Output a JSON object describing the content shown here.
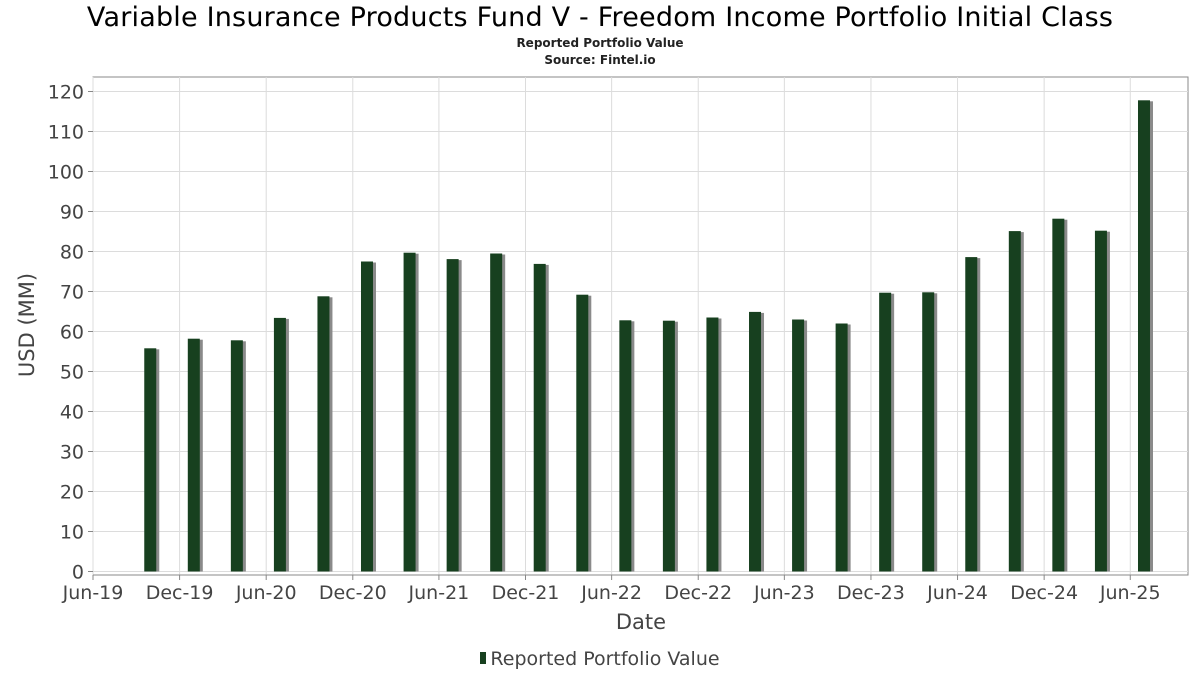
{
  "chart_data": {
    "type": "bar",
    "title": "Variable Insurance Products Fund V - Freedom Income Portfolio Initial Class",
    "subtitle_lines": [
      "Reported Portfolio Value",
      "Source: Fintel.io"
    ],
    "xlabel": "Date",
    "ylabel": "USD (MM)",
    "ylim": [
      0,
      123
    ],
    "yticks": [
      0,
      10,
      20,
      30,
      40,
      50,
      60,
      70,
      80,
      90,
      100,
      110,
      120
    ],
    "x_tick_labels": [
      "Jun-19",
      "Dec-19",
      "Jun-20",
      "Dec-20",
      "Jun-21",
      "Dec-21",
      "Jun-22",
      "Dec-22",
      "Jun-23",
      "Dec-23",
      "Jun-24",
      "Dec-24",
      "Jun-25"
    ],
    "x_range": [
      "2019-06-01",
      "2025-10-01"
    ],
    "grid": true,
    "legend_position": "bottom-center",
    "bar_color": "#17401f",
    "shadow_color": "#8a8a8a",
    "series": [
      {
        "name": "Reported Portfolio Value",
        "x": [
          "2019-09-30",
          "2019-12-31",
          "2020-03-31",
          "2020-06-30",
          "2020-09-30",
          "2020-12-31",
          "2021-03-31",
          "2021-06-30",
          "2021-09-30",
          "2021-12-31",
          "2022-03-31",
          "2022-06-30",
          "2022-09-30",
          "2022-12-31",
          "2023-03-31",
          "2023-06-30",
          "2023-09-30",
          "2023-12-31",
          "2024-03-31",
          "2024-06-30",
          "2024-09-30",
          "2024-12-31",
          "2025-03-31",
          "2025-06-30"
        ],
        "values": [
          55.8,
          58.2,
          57.8,
          63.4,
          68.8,
          77.5,
          79.7,
          78.1,
          79.5,
          76.9,
          69.2,
          62.8,
          62.7,
          63.5,
          64.9,
          63.0,
          62.0,
          69.7,
          69.8,
          78.6,
          85.1,
          88.2,
          85.2,
          117.8
        ]
      }
    ]
  }
}
